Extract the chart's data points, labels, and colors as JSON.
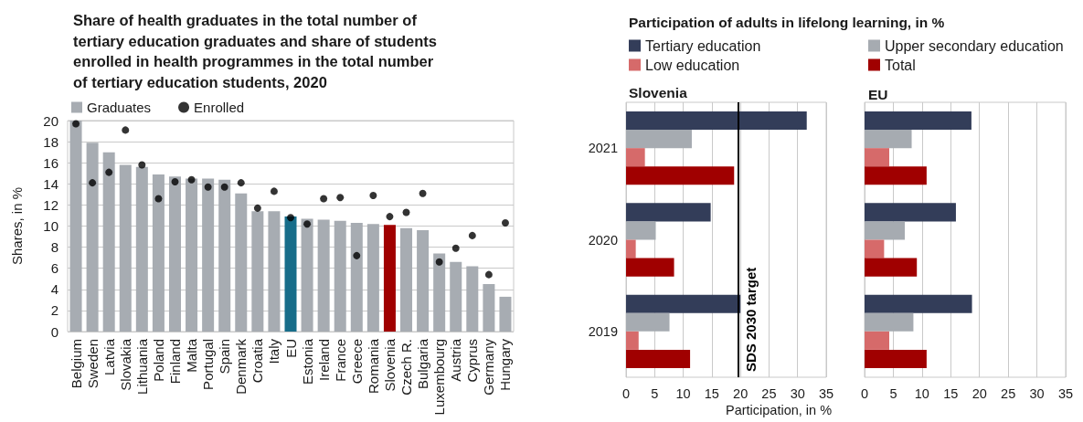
{
  "chart_data": [
    {
      "type": "bar",
      "title": "Share of health graduates in the total number of tertiary education graduates and share of students enrolled in health programmes in the total number of tertiary education students, 2020",
      "ylabel": "Shares, in %",
      "categories": [
        "Belgium",
        "Sweden",
        "Latvia",
        "Slovakia",
        "Lithuania",
        "Poland",
        "Finland",
        "Malta",
        "Portugal",
        "Spain",
        "Denmark",
        "Croatia",
        "Italy",
        "EU",
        "Estonia",
        "Ireland",
        "France",
        "Greece",
        "Romania",
        "Slovenia",
        "Czech R.",
        "Bulgaria",
        "Luxembourg",
        "Austria",
        "Cyprus",
        "Germany",
        "Hungary"
      ],
      "series": [
        {
          "name": "Graduates",
          "color": "#a7acb2",
          "colors": [
            "#a7acb2",
            "#a7acb2",
            "#a7acb2",
            "#a7acb2",
            "#a7acb2",
            "#a7acb2",
            "#a7acb2",
            "#a7acb2",
            "#a7acb2",
            "#a7acb2",
            "#a7acb2",
            "#a7acb2",
            "#a7acb2",
            "#176d8a",
            "#a7acb2",
            "#a7acb2",
            "#a7acb2",
            "#a7acb2",
            "#a7acb2",
            "#a00000",
            "#a7acb2",
            "#a7acb2",
            "#a7acb2",
            "#a7acb2",
            "#a7acb2",
            "#a7acb2",
            "#a7acb2"
          ],
          "values": [
            20,
            17.9,
            17.0,
            15.8,
            15.6,
            14.9,
            14.7,
            14.5,
            14.5,
            14.4,
            13.1,
            11.4,
            11.4,
            10.9,
            10.7,
            10.6,
            10.5,
            10.3,
            10.2,
            10.1,
            9.8,
            9.6,
            7.4,
            6.6,
            6.2,
            4.5,
            3.3
          ]
        },
        {
          "name": "Enrolled",
          "type": "scatter",
          "color": "#000000",
          "marker": "circle",
          "values": [
            19.7,
            14.1,
            15.1,
            19.1,
            15.8,
            12.6,
            14.2,
            14.4,
            13.7,
            13.7,
            14.1,
            11.7,
            13.3,
            10.8,
            10.2,
            12.6,
            12.7,
            7.2,
            12.9,
            10.9,
            11.3,
            13.1,
            6.6,
            7.9,
            9.1,
            5.4,
            10.3
          ]
        }
      ],
      "ylim": [
        0,
        20
      ],
      "yticks": [
        0,
        2,
        4,
        6,
        8,
        10,
        12,
        14,
        16,
        18,
        20
      ],
      "grid": "y",
      "legend": "top left"
    },
    {
      "type": "bar",
      "orientation": "horizontal",
      "title": "Participation of adults in lifelong learning, in %",
      "subtitle": "Slovenia",
      "xlabel": "Participation, in %",
      "categories": [
        "2021",
        "2020",
        "2019"
      ],
      "series": [
        {
          "name": "Tertiary education",
          "color": "#333d59",
          "values": [
            31.6,
            14.8,
            20
          ]
        },
        {
          "name": "Upper secondary education",
          "color": "#a6abb1",
          "values": [
            11.5,
            5.2,
            7.6
          ]
        },
        {
          "name": "Low education",
          "color": "#d66a6a",
          "values": [
            3.3,
            1.7,
            2.2
          ]
        },
        {
          "name": "Total",
          "color": "#a00000",
          "values": [
            18.9,
            8.4,
            11.2
          ]
        }
      ],
      "xlim": [
        0,
        35
      ],
      "xticks": [
        0,
        5,
        10,
        15,
        20,
        25,
        30,
        35
      ],
      "grid": "x",
      "legend": "top",
      "ref_lines": [
        {
          "axis": "x",
          "value": 19.6,
          "label": "SDS 2030 target",
          "color": "#000000"
        }
      ]
    },
    {
      "type": "bar",
      "orientation": "horizontal",
      "title": "EU",
      "categories": [
        "2021",
        "2020",
        "2019"
      ],
      "series": [
        {
          "color": "#333d59",
          "values": [
            18.6,
            15.9,
            18.7
          ]
        },
        {
          "color": "#a6abb1",
          "values": [
            8.2,
            7.0,
            8.5
          ]
        },
        {
          "color": "#d66a6a",
          "values": [
            4.3,
            3.4,
            4.3
          ]
        },
        {
          "color": "#a00000",
          "values": [
            10.8,
            9.1,
            10.8
          ]
        }
      ],
      "xlim": [
        0,
        35
      ],
      "xticks": [
        0,
        5,
        10,
        15,
        20,
        25,
        30,
        35
      ],
      "grid": "x",
      "tick_labels": "x"
    }
  ]
}
